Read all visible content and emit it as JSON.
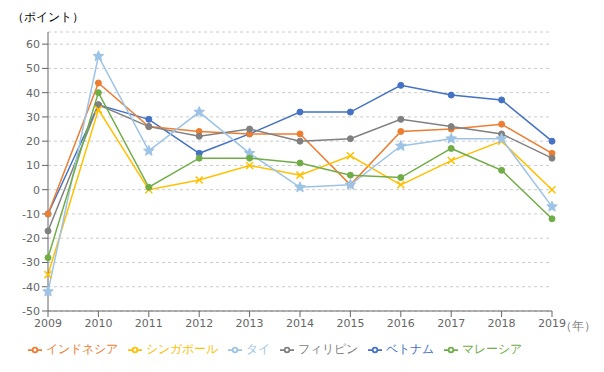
{
  "chart_data": {
    "type": "line",
    "categories": [
      "2009",
      "2010",
      "2011",
      "2012",
      "2013",
      "2014",
      "2015",
      "2016",
      "2017",
      "2018",
      "2019"
    ],
    "series": [
      {
        "name": "ベトナム",
        "color": "#4472C4",
        "marker": "circle",
        "values": [
          -10,
          35,
          29,
          15,
          23,
          32,
          32,
          43,
          39,
          37,
          20
        ]
      },
      {
        "name": "インドネシア",
        "color": "#ED7D31",
        "marker": "circle",
        "values": [
          -10,
          44,
          26,
          24,
          23,
          23,
          2,
          24,
          25,
          27,
          15
        ]
      },
      {
        "name": "フィリピン",
        "color": "#808080",
        "marker": "circle",
        "values": [
          -17,
          35,
          26,
          22,
          25,
          20,
          21,
          29,
          26,
          23,
          13
        ]
      },
      {
        "name": "シンガポール",
        "color": "#FFC000",
        "marker": "x",
        "values": [
          -35,
          33,
          0,
          4,
          10,
          6,
          14,
          2,
          12,
          20,
          0
        ]
      },
      {
        "name": "タイ",
        "color": "#9DC3E6",
        "marker": "star",
        "values": [
          -42,
          55,
          16,
          32,
          15,
          1,
          2,
          18,
          21,
          21,
          -7
        ]
      },
      {
        "name": "マレーシア",
        "color": "#70AD47",
        "marker": "circle",
        "values": [
          -28,
          40,
          1,
          13,
          13,
          11,
          6,
          5,
          17,
          8,
          -12
        ]
      }
    ],
    "ylabel": "（ポイント）",
    "xlabel": "（年）",
    "ylim": [
      -50,
      65
    ],
    "yticks": [
      -50,
      -40,
      -30,
      -20,
      -10,
      0,
      10,
      20,
      30,
      40,
      50,
      60
    ],
    "grid": true,
    "legend": "bottom"
  }
}
